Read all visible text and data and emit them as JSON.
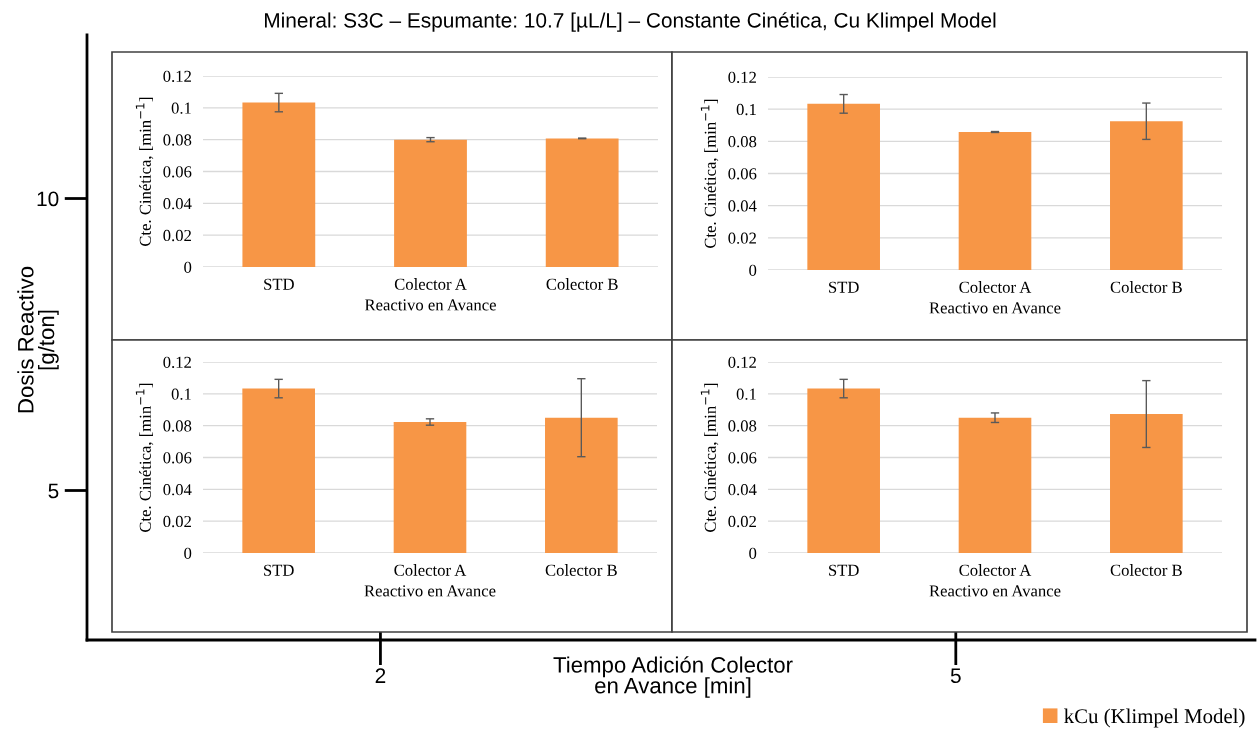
{
  "chart_data": [
    {
      "type": "scatter",
      "title": "Mineral: S3C – Espumante: 10.7 [µL/L] – Constante Cinética, Cu Klimpel Model",
      "xlabel": "Tiempo Adición Colector\nen Avance [min]",
      "ylabel": "Dosis Reactivo\n[g/ton]",
      "xlim": [
        0.47,
        6.56
      ],
      "ylim": [
        2.44,
        12.8
      ],
      "xticks": [
        2,
        5
      ],
      "yticks": [
        5,
        10
      ]
    },
    {
      "type": "bar",
      "categories": [
        "STD",
        "Colector A",
        "Colector B"
      ],
      "xlabel": "Reactivo en Avance",
      "ylabel": "Cte. Cinética, [min$^{−1}$]",
      "ylim": [
        0,
        0.12
      ],
      "yticks": [
        0,
        0.02,
        0.04,
        0.06,
        0.08,
        0.1,
        0.12
      ],
      "grid": "y",
      "series": [
        {
          "color": "#f79646",
          "values": [
            0.1033,
            0.08,
            0.0808
          ],
          "errors": [
            0.0058,
            0.0013,
            0.0002
          ]
        }
      ]
    },
    {
      "type": "bar",
      "categories": [
        "STD",
        "Colector A",
        "Colector B"
      ],
      "xlabel": "Reactivo en Avance",
      "ylabel": "Cte. Cinética, [min$^{−1}$]",
      "ylim": [
        0,
        0.12
      ],
      "yticks": [
        0,
        0.02,
        0.04,
        0.06,
        0.08,
        0.1,
        0.12
      ],
      "grid": "y",
      "series": [
        {
          "color": "#f79646",
          "values": [
            0.1033,
            0.0858,
            0.0925
          ],
          "errors": [
            0.0058,
            0.0003,
            0.0113
          ]
        }
      ]
    },
    {
      "type": "bar",
      "categories": [
        "STD",
        "Colector A",
        "Colector B"
      ],
      "xlabel": "Reactivo en Avance",
      "ylabel": "Cte. Cinética, [min$^{−1}$]",
      "ylim": [
        0,
        0.12
      ],
      "yticks": [
        0,
        0.02,
        0.04,
        0.06,
        0.08,
        0.1,
        0.12
      ],
      "grid": "y",
      "series": [
        {
          "color": "#f79646",
          "values": [
            0.1033,
            0.0823,
            0.085
          ],
          "errors": [
            0.0058,
            0.002,
            0.0245
          ]
        }
      ]
    },
    {
      "type": "bar",
      "categories": [
        "STD",
        "Colector A",
        "Colector B"
      ],
      "xlabel": "Reactivo en Avance",
      "ylabel": "Cte. Cinética, [min$^{−1}$]",
      "ylim": [
        0,
        0.12
      ],
      "yticks": [
        0,
        0.02,
        0.04,
        0.06,
        0.08,
        0.1,
        0.12
      ],
      "grid": "y",
      "legend": "bottom right",
      "series": [
        {
          "name": "kCu (Klimpel Model)",
          "color": "#f79646",
          "values": [
            0.1033,
            0.085,
            0.0873
          ],
          "errors": [
            0.0058,
            0.003,
            0.021
          ]
        }
      ]
    }
  ]
}
